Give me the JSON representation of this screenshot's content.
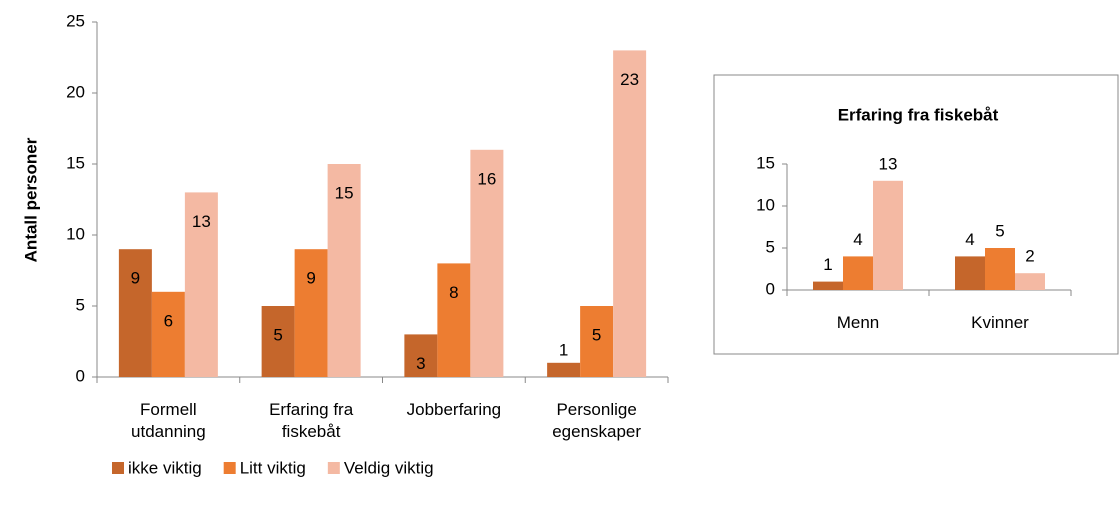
{
  "chart_data": [
    {
      "type": "bar",
      "y_label": "Antall personer",
      "categories": [
        "Formell utdanning",
        "Erfaring fra fiskebåt",
        "Jobberfaring",
        "Personlige egenskaper"
      ],
      "series": [
        {
          "name": "ikke viktig",
          "color": "#c5662b",
          "values": [
            9,
            5,
            3,
            1
          ]
        },
        {
          "name": "Litt viktig",
          "color": "#ed7d31",
          "values": [
            6,
            9,
            8,
            5
          ]
        },
        {
          "name": "Veldig viktig",
          "color": "#f4b9a3",
          "values": [
            13,
            15,
            16,
            23
          ]
        }
      ],
      "ylim": [
        0,
        25
      ],
      "yticks": [
        0,
        5,
        10,
        15,
        20,
        25
      ],
      "legend": "bottom"
    },
    {
      "type": "bar",
      "title": "Erfaring fra fiskebåt",
      "categories": [
        "Menn",
        "Kvinner"
      ],
      "series": [
        {
          "color": "#c5662b",
          "values": [
            1,
            4
          ]
        },
        {
          "color": "#ed7d31",
          "values": [
            4,
            5
          ]
        },
        {
          "color": "#f4b9a3",
          "values": [
            13,
            2
          ]
        }
      ],
      "ylim": [
        0,
        15
      ],
      "yticks": [
        0,
        5,
        10,
        15
      ]
    }
  ]
}
